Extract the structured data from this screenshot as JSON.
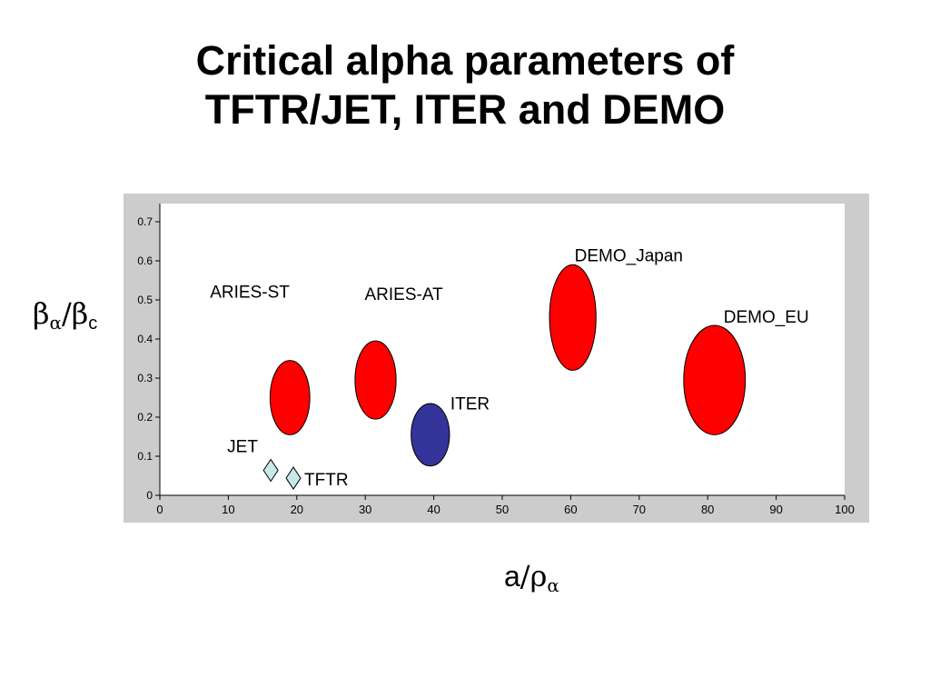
{
  "title_line1": "Critical alpha parameters of",
  "title_line2": "TFTR/JET, ITER and DEMO",
  "ylabel": {
    "sym1": "β",
    "sub1": "α",
    "slash": "/",
    "sym2": "β",
    "sub2": "c"
  },
  "xlabel": {
    "sym1": "a",
    "slash": "/",
    "sym2": "ρ",
    "sub2": "α"
  },
  "colors": {
    "frame_bg": "#cccccc",
    "plot_bg": "#ffffff",
    "demo_red": "#ff0000",
    "iter_blue": "#333399",
    "marker_cyan": "#c8e8ec"
  },
  "chart_data": {
    "type": "scatter",
    "xlim": [
      0,
      100
    ],
    "ylim": [
      0,
      0.7
    ],
    "xticks": [
      "0",
      "10",
      "20",
      "30",
      "40",
      "50",
      "60",
      "70",
      "80",
      "90",
      "100"
    ],
    "yticks": [
      "0",
      "0.1",
      "0.2",
      "0.3",
      "0.4",
      "0.5",
      "0.6",
      "0.7"
    ],
    "grid": false,
    "points": [
      {
        "label": "JET",
        "x": 16.2,
        "y": 0.064,
        "marker": "diamond",
        "color": "#c8e8ec"
      },
      {
        "label": "TFTR",
        "x": 19.5,
        "y": 0.044,
        "marker": "diamond",
        "color": "#c8e8ec"
      },
      {
        "label": "ARIES-ST",
        "x": 19.0,
        "y": 0.25,
        "marker": "ellipse",
        "color": "#ff0000",
        "x_extent": [
          16.1,
          21.9
        ],
        "y_extent": [
          0.155,
          0.345
        ]
      },
      {
        "label": "ARIES-AT",
        "x": 31.5,
        "y": 0.295,
        "marker": "ellipse",
        "color": "#ff0000",
        "x_extent": [
          28.5,
          34.5
        ],
        "y_extent": [
          0.195,
          0.395
        ]
      },
      {
        "label": "ITER",
        "x": 39.5,
        "y": 0.155,
        "marker": "ellipse",
        "color": "#333399",
        "x_extent": [
          36.7,
          42.3
        ],
        "y_extent": [
          0.075,
          0.235
        ]
      },
      {
        "label": "DEMO_Japan",
        "x": 60.3,
        "y": 0.455,
        "marker": "ellipse",
        "color": "#ff0000",
        "x_extent": [
          56.9,
          63.7
        ],
        "y_extent": [
          0.32,
          0.59
        ]
      },
      {
        "label": "DEMO_EU",
        "x": 81.0,
        "y": 0.295,
        "marker": "ellipse",
        "color": "#ff0000",
        "x_extent": [
          76.5,
          85.5
        ],
        "y_extent": [
          0.155,
          0.435
        ]
      }
    ]
  }
}
